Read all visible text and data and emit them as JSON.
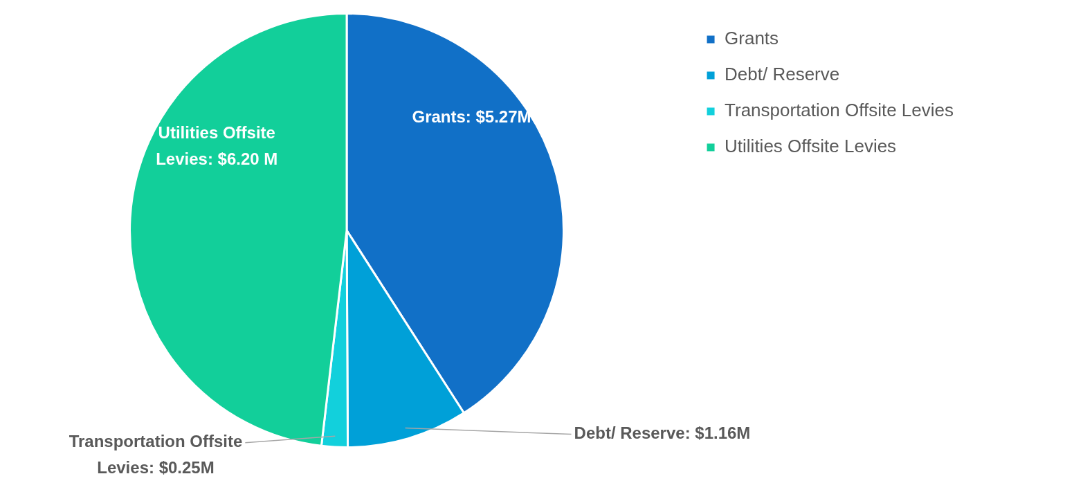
{
  "chart_data": {
    "type": "pie",
    "categories": [
      "Grants",
      "Debt/ Reserve",
      "Transportation Offsite Levies",
      "Utilities Offsite Levies"
    ],
    "values": [
      5.27,
      1.16,
      0.25,
      6.2
    ],
    "colors": [
      "#1170c7",
      "#00a0d8",
      "#12d0dc",
      "#12cf9a"
    ],
    "value_labels": [
      "Grants: $5.27M",
      "Debt/ Reserve: $1.16M",
      "Transportation Offsite Levies: $0.25M",
      "Utilities Offsite Levies: $6.20 M"
    ],
    "legend": "top right"
  }
}
